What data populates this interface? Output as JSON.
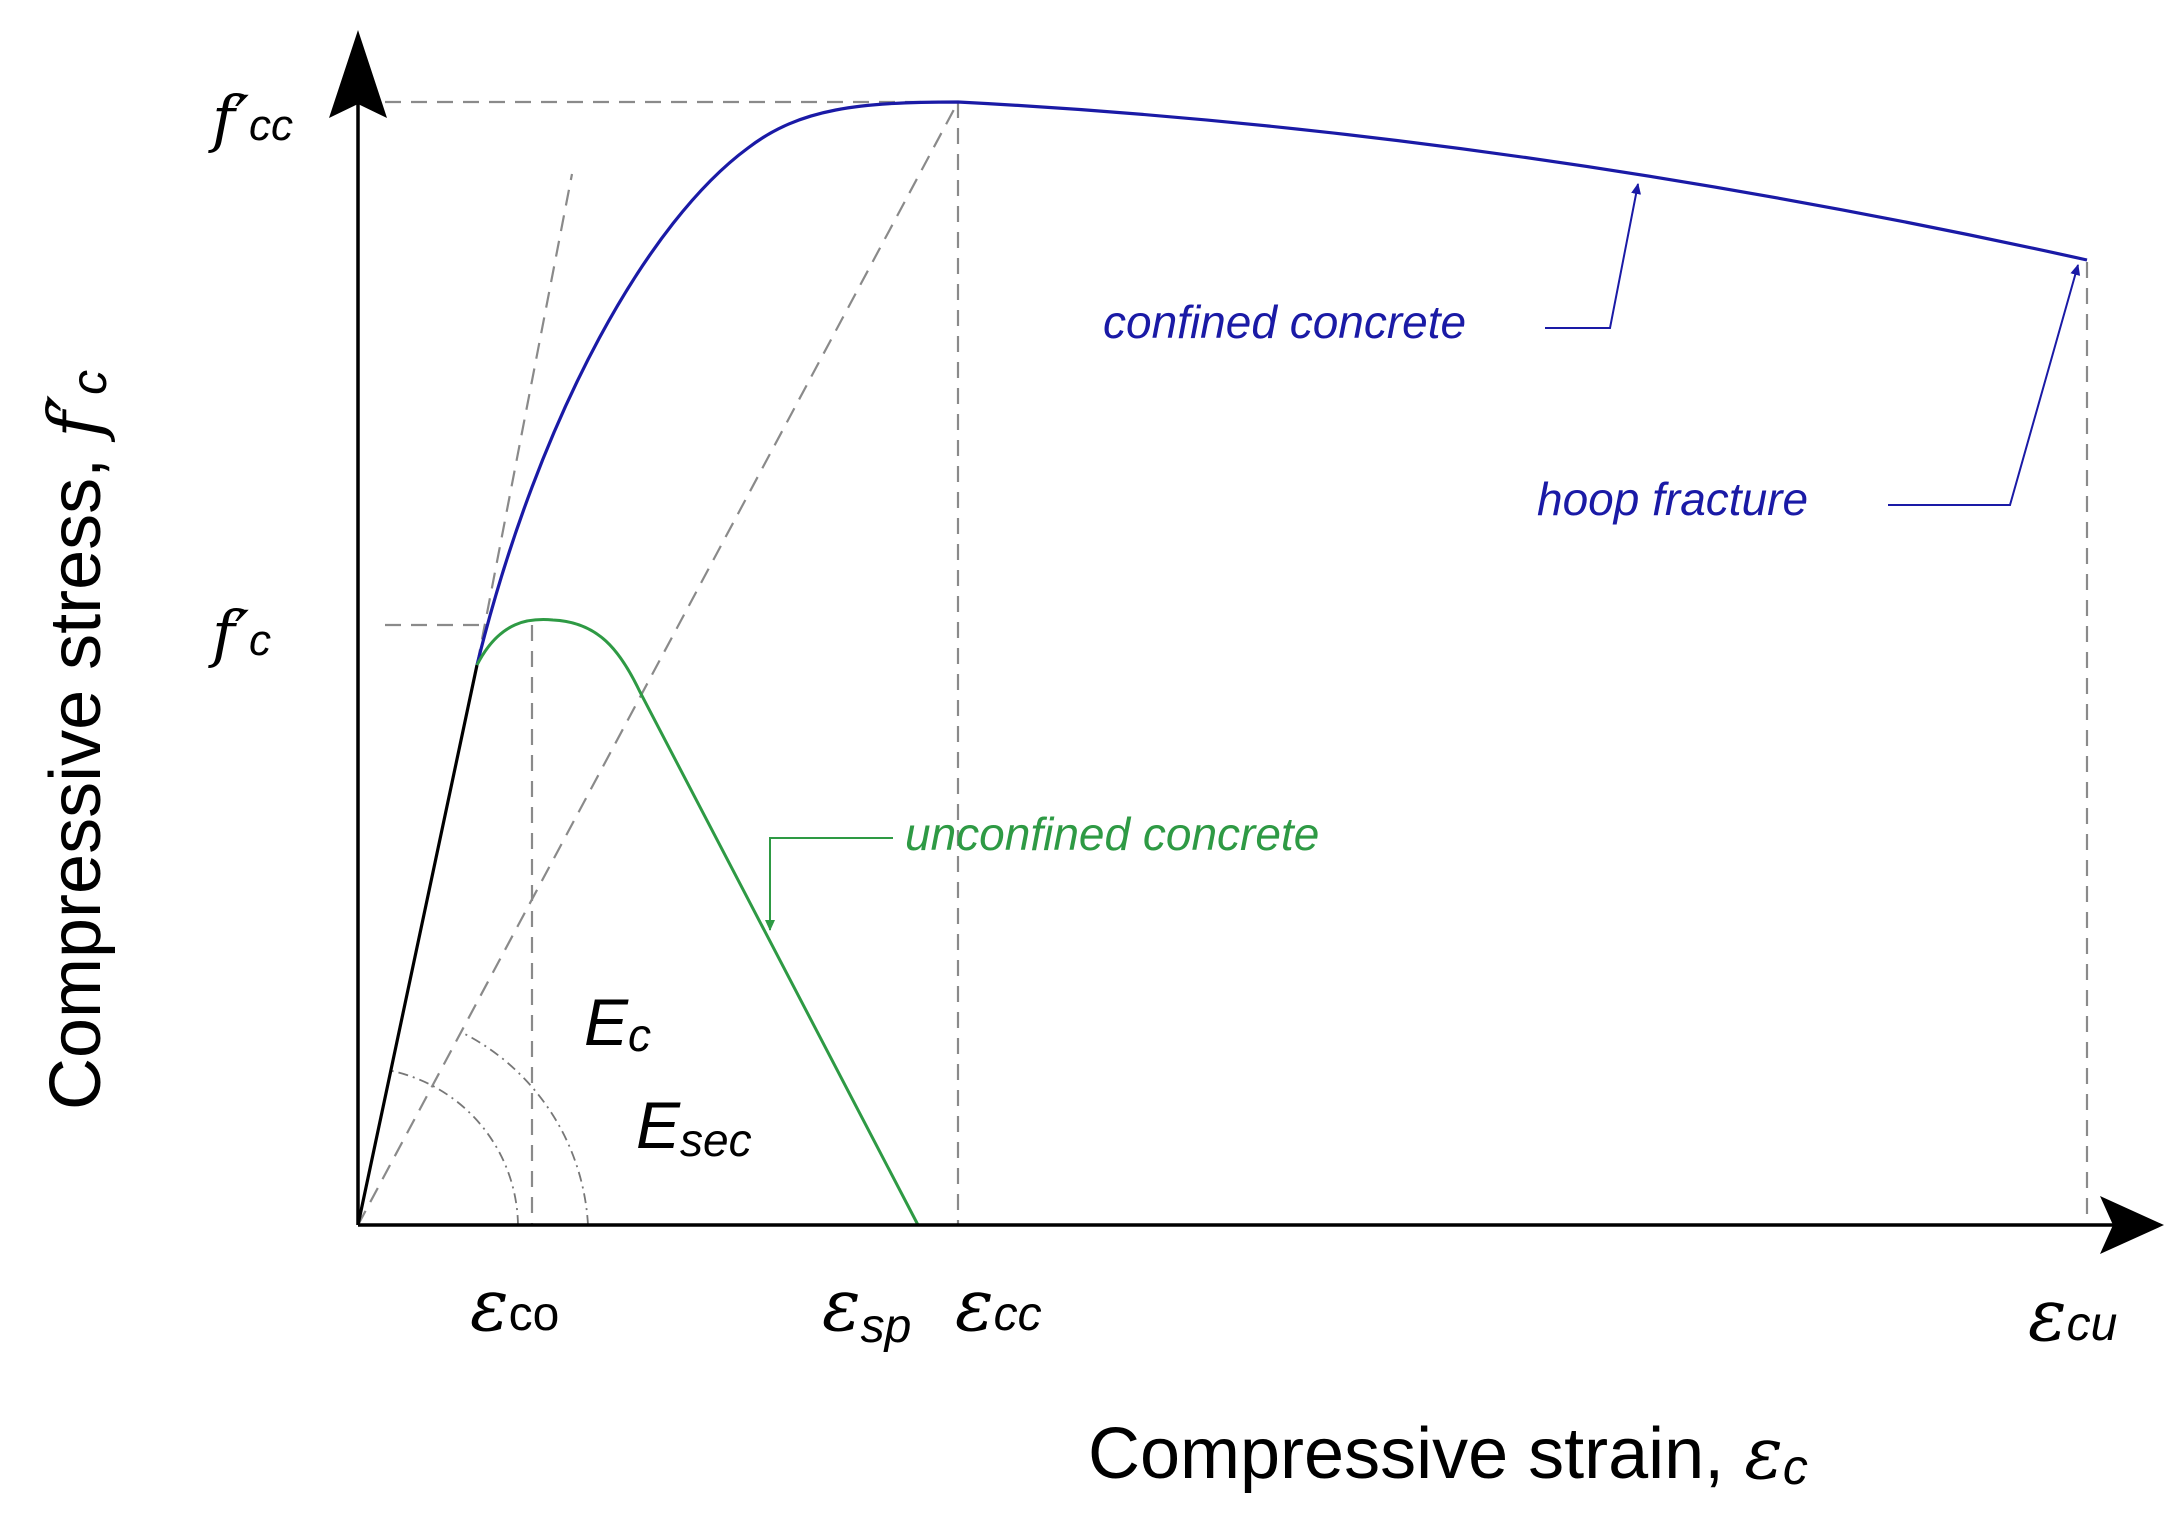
{
  "colors": {
    "confined": "#1a1aa6",
    "unconfined": "#2e9a44",
    "axis": "#000000",
    "guide": "#8a8a8a"
  },
  "axes": {
    "x_label_main": "Compressive strain, ",
    "x_label_sym": "ε",
    "x_label_sub": "c",
    "y_label_main": "Compressive stress, ",
    "y_label_sym": "f′",
    "y_label_sub": "c"
  },
  "y_ticks": [
    {
      "sym": "f′",
      "sub": "cc"
    },
    {
      "sym": "f′",
      "sub": "c"
    }
  ],
  "x_ticks": [
    {
      "sym": "ε",
      "sub": "co"
    },
    {
      "sym": "ε",
      "sub": "sp"
    },
    {
      "sym": "ε",
      "sub": "cc"
    },
    {
      "sym": "ε",
      "sub": "cu"
    }
  ],
  "moduli": [
    {
      "sym": "E",
      "sub": "c"
    },
    {
      "sym": "E",
      "sub": "sec"
    }
  ],
  "annotations": {
    "confined": "confined concrete",
    "hoop": "hoop fracture",
    "unconfined": "unconfined concrete"
  }
}
